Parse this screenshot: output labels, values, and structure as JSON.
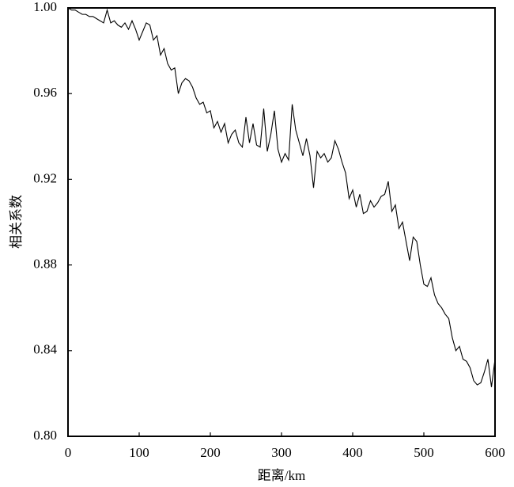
{
  "chart_data": {
    "type": "line",
    "xlabel": "距离/km",
    "ylabel": "相关系数",
    "x": [
      0,
      5,
      10,
      15,
      20,
      25,
      30,
      35,
      40,
      45,
      50,
      55,
      60,
      65,
      70,
      75,
      80,
      85,
      90,
      95,
      100,
      105,
      110,
      115,
      120,
      125,
      130,
      135,
      140,
      145,
      150,
      155,
      160,
      165,
      170,
      175,
      180,
      185,
      190,
      195,
      200,
      205,
      210,
      215,
      220,
      225,
      230,
      235,
      240,
      245,
      250,
      255,
      260,
      265,
      270,
      275,
      280,
      285,
      290,
      295,
      300,
      305,
      310,
      315,
      320,
      325,
      330,
      335,
      340,
      345,
      350,
      355,
      360,
      365,
      370,
      375,
      380,
      385,
      390,
      395,
      400,
      405,
      410,
      415,
      420,
      425,
      430,
      435,
      440,
      445,
      450,
      455,
      460,
      465,
      470,
      475,
      480,
      485,
      490,
      495,
      500,
      505,
      510,
      515,
      520,
      525,
      530,
      535,
      540,
      545,
      550,
      555,
      560,
      565,
      570,
      575,
      580,
      585,
      590,
      595,
      600
    ],
    "series": [
      {
        "color": "#000000",
        "values": [
          1.0,
          0.999,
          0.999,
          0.998,
          0.997,
          0.997,
          0.996,
          0.996,
          0.995,
          0.994,
          0.993,
          0.999,
          0.993,
          0.994,
          0.992,
          0.991,
          0.993,
          0.99,
          0.994,
          0.99,
          0.985,
          0.989,
          0.993,
          0.992,
          0.985,
          0.987,
          0.978,
          0.981,
          0.974,
          0.971,
          0.972,
          0.96,
          0.965,
          0.967,
          0.966,
          0.963,
          0.958,
          0.955,
          0.956,
          0.951,
          0.952,
          0.944,
          0.947,
          0.942,
          0.946,
          0.937,
          0.941,
          0.943,
          0.937,
          0.935,
          0.949,
          0.937,
          0.946,
          0.936,
          0.935,
          0.953,
          0.933,
          0.941,
          0.952,
          0.934,
          0.928,
          0.932,
          0.929,
          0.955,
          0.943,
          0.937,
          0.931,
          0.939,
          0.931,
          0.916,
          0.933,
          0.93,
          0.932,
          0.928,
          0.93,
          0.938,
          0.934,
          0.928,
          0.923,
          0.911,
          0.915,
          0.907,
          0.913,
          0.904,
          0.905,
          0.91,
          0.907,
          0.909,
          0.912,
          0.913,
          0.919,
          0.905,
          0.908,
          0.897,
          0.9,
          0.891,
          0.882,
          0.893,
          0.891,
          0.88,
          0.871,
          0.87,
          0.874,
          0.866,
          0.862,
          0.86,
          0.857,
          0.855,
          0.846,
          0.84,
          0.842,
          0.836,
          0.835,
          0.832,
          0.826,
          0.824,
          0.825,
          0.83,
          0.836,
          0.823,
          0.836
        ]
      }
    ],
    "xlim": [
      0,
      600
    ],
    "xticks": [
      0,
      100,
      200,
      300,
      400,
      500,
      600
    ],
    "ylim": [
      0.8,
      1.0
    ],
    "yticks": [
      {
        "value": 0.8,
        "label": "0.80"
      },
      0.84,
      0.88,
      0.92,
      0.96,
      {
        "value": 1.0,
        "label": "1.00"
      }
    ]
  }
}
